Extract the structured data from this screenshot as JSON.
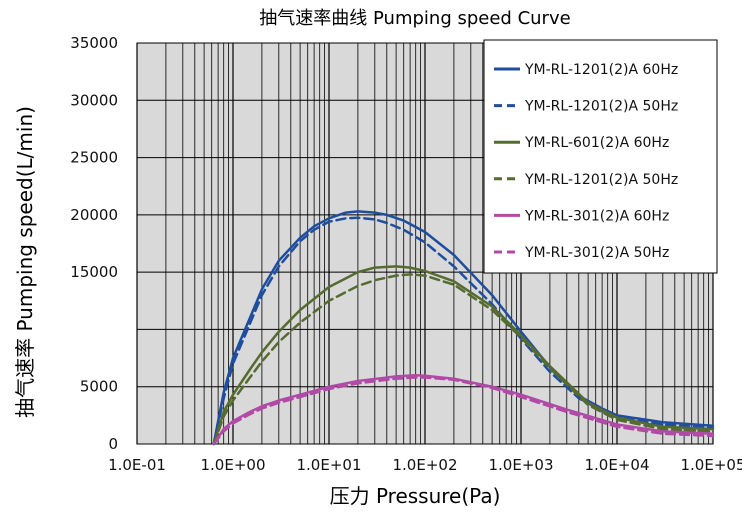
{
  "chart_data": {
    "type": "line",
    "title": "抽气速率曲线 Pumping speed Curve",
    "xlabel": "压力 Pressure(Pa)",
    "ylabel": "抽气速率 Pumping speed(L/min)",
    "x_scale": "log",
    "xlim": [
      0.1,
      100000
    ],
    "ylim": [
      0,
      35000
    ],
    "x_ticks": [
      "1.0E-01",
      "1.0E+00",
      "1.0E+01",
      "1.0E+02",
      "1.0E+03",
      "1.0E+04",
      "1.0E+05"
    ],
    "y_ticks": [
      "0",
      "5000",
      "15000",
      "20000",
      "25000",
      "30000",
      "35000"
    ],
    "y_tick_values": [
      0,
      5000,
      15000,
      20000,
      25000,
      30000,
      35000
    ],
    "grid": true,
    "legend_position": "top-right",
    "colors": {
      "blue": "#1f4e9e",
      "green": "#556b2f",
      "magenta": "#b04aa6",
      "plot_bg": "#d9d9d9"
    },
    "series": [
      {
        "name": "YM-RL-1201(2)A 60Hz",
        "color": "#1f4e9e",
        "style": "solid",
        "x": [
          0.63,
          0.8,
          1,
          1.5,
          2,
          3,
          5,
          7,
          10,
          15,
          20,
          30,
          40,
          60,
          100,
          200,
          500,
          1000,
          2000,
          4000,
          7000,
          10000,
          30000,
          100000
        ],
        "y": [
          0,
          4500,
          7500,
          11000,
          13500,
          16000,
          18000,
          19000,
          19700,
          20200,
          20300,
          20200,
          20000,
          19500,
          18500,
          16500,
          13000,
          9800,
          6700,
          4200,
          3100,
          2500,
          1900,
          1600
        ]
      },
      {
        "name": "YM-RL-1201(2)A 50Hz",
        "color": "#1f4e9e",
        "style": "dashed",
        "x": [
          0.63,
          0.8,
          1,
          1.5,
          2,
          3,
          5,
          7,
          10,
          15,
          20,
          30,
          40,
          60,
          100,
          200,
          500,
          1000,
          2000,
          4000,
          7000,
          10000,
          30000,
          100000
        ],
        "y": [
          0,
          4000,
          7000,
          10500,
          13000,
          15500,
          17700,
          18700,
          19400,
          19700,
          19750,
          19600,
          19300,
          18700,
          17600,
          15500,
          12200,
          9200,
          6300,
          4000,
          2900,
          2300,
          1700,
          1400
        ]
      },
      {
        "name": "YM-RL-601(2)A 60Hz",
        "color": "#556b2f",
        "style": "solid",
        "x": [
          0.63,
          0.8,
          1,
          1.5,
          2,
          3,
          5,
          10,
          20,
          30,
          50,
          70,
          100,
          200,
          500,
          1000,
          2000,
          5000,
          10000,
          30000,
          100000
        ],
        "y": [
          0,
          2800,
          4300,
          6500,
          8000,
          9800,
          11700,
          13700,
          15000,
          15400,
          15500,
          15400,
          15100,
          14200,
          12000,
          9500,
          6800,
          3600,
          2300,
          1500,
          1300
        ]
      },
      {
        "name": "YM-RL-1201(2)A 50Hz",
        "color": "#556b2f",
        "style": "dashed",
        "x": [
          0.63,
          0.8,
          1,
          1.5,
          2,
          3,
          5,
          10,
          20,
          30,
          50,
          70,
          100,
          200,
          500,
          1000,
          2000,
          5000,
          10000,
          30000,
          100000
        ],
        "y": [
          0,
          2400,
          3800,
          5800,
          7200,
          8900,
          10600,
          12500,
          13800,
          14300,
          14700,
          14800,
          14700,
          13900,
          11700,
          9300,
          6600,
          3400,
          2100,
          1300,
          1100
        ]
      },
      {
        "name": "YM-RL-301(2)A 60Hz",
        "color": "#b04aa6",
        "style": "solid",
        "x": [
          0.63,
          0.8,
          1,
          1.5,
          2,
          3,
          5,
          10,
          20,
          50,
          80,
          100,
          200,
          500,
          1000,
          3000,
          10000,
          30000,
          100000
        ],
        "y": [
          0,
          1300,
          2000,
          2800,
          3300,
          3800,
          4300,
          5000,
          5500,
          5900,
          6000,
          5950,
          5700,
          5000,
          4300,
          3000,
          1700,
          1100,
          900
        ]
      },
      {
        "name": "YM-RL-301(2)A 50Hz",
        "color": "#b04aa6",
        "style": "dashed",
        "x": [
          0.63,
          0.8,
          1,
          1.5,
          2,
          3,
          5,
          10,
          20,
          50,
          80,
          100,
          200,
          500,
          1000,
          3000,
          10000,
          30000,
          100000
        ],
        "y": [
          0,
          1100,
          1800,
          2600,
          3100,
          3600,
          4100,
          4800,
          5300,
          5700,
          5800,
          5800,
          5600,
          4900,
          4100,
          2800,
          1500,
          900,
          700
        ]
      }
    ]
  }
}
